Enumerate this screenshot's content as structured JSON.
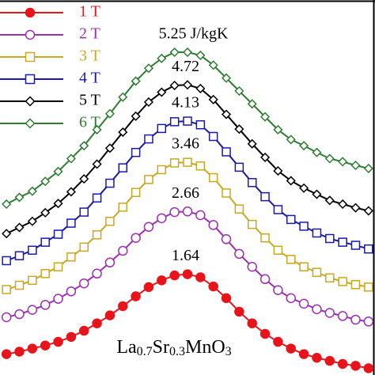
{
  "chart_data": {
    "type": "line",
    "categories": [
      null,
      null,
      null,
      null,
      null,
      null,
      null,
      null,
      null,
      null,
      null,
      null,
      null,
      null,
      null,
      null,
      null,
      null,
      null,
      null,
      null,
      null,
      null,
      null,
      null,
      null,
      null,
      null,
      null
    ],
    "ylim": [
      0,
      6.1
    ],
    "legend": "upper left",
    "series": [
      {
        "name": "1 T",
        "color": "#e8141b",
        "marker": "circle",
        "marker_fill": true,
        "values": [
          0.34,
          0.38,
          0.43,
          0.48,
          0.54,
          0.62,
          0.72,
          0.84,
          0.97,
          1.12,
          1.28,
          1.43,
          1.54,
          1.62,
          1.64,
          1.59,
          1.44,
          1.25,
          1.03,
          0.84,
          0.67,
          0.54,
          0.43,
          0.34,
          0.28,
          0.23,
          0.18,
          0.15,
          0.11
        ],
        "value_labels": [
          null,
          null,
          null,
          null,
          null,
          null,
          null,
          null,
          null,
          null,
          null,
          null,
          null,
          null,
          "1.64",
          null,
          null,
          null,
          null,
          null,
          null,
          null,
          null,
          null,
          null,
          null,
          null,
          null,
          null
        ]
      },
      {
        "name": "2 T",
        "color": "#9b30b0",
        "marker": "circle",
        "marker_fill": false,
        "values": [
          0.94,
          0.99,
          1.06,
          1.14,
          1.24,
          1.36,
          1.49,
          1.65,
          1.83,
          2.02,
          2.23,
          2.41,
          2.55,
          2.65,
          2.66,
          2.6,
          2.44,
          2.21,
          1.97,
          1.76,
          1.56,
          1.38,
          1.25,
          1.16,
          1.07,
          1.01,
          0.96,
          0.9,
          0.87
        ],
        "value_labels": [
          null,
          null,
          null,
          null,
          null,
          null,
          null,
          null,
          null,
          null,
          null,
          null,
          null,
          null,
          "2.66",
          null,
          null,
          null,
          null,
          null,
          null,
          null,
          null,
          null,
          null,
          null,
          null,
          null,
          null
        ]
      },
      {
        "name": "3 T",
        "color": "#c8a820",
        "marker": "square",
        "marker_fill": false,
        "values": [
          1.39,
          1.46,
          1.54,
          1.65,
          1.76,
          1.92,
          2.08,
          2.28,
          2.5,
          2.73,
          2.97,
          3.18,
          3.34,
          3.45,
          3.46,
          3.4,
          3.21,
          2.96,
          2.7,
          2.45,
          2.23,
          2.03,
          1.88,
          1.76,
          1.67,
          1.58,
          1.52,
          1.47,
          1.43
        ],
        "value_labels": [
          null,
          null,
          null,
          null,
          null,
          null,
          null,
          null,
          null,
          null,
          null,
          null,
          null,
          null,
          "3.46",
          null,
          null,
          null,
          null,
          null,
          null,
          null,
          null,
          null,
          null,
          null,
          null,
          null,
          null
        ]
      },
      {
        "name": "4 T",
        "color": "#1a1aa8",
        "marker": "square",
        "marker_fill": false,
        "values": [
          1.86,
          1.94,
          2.03,
          2.16,
          2.29,
          2.47,
          2.65,
          2.88,
          3.12,
          3.37,
          3.62,
          3.84,
          4.01,
          4.12,
          4.13,
          4.07,
          3.88,
          3.63,
          3.38,
          3.13,
          2.9,
          2.69,
          2.53,
          2.42,
          2.31,
          2.22,
          2.16,
          2.11,
          2.05
        ],
        "value_labels": [
          null,
          null,
          null,
          null,
          null,
          null,
          null,
          null,
          null,
          null,
          null,
          null,
          null,
          null,
          "4.13",
          null,
          null,
          null,
          null,
          null,
          null,
          null,
          null,
          null,
          null,
          null,
          null,
          null,
          null
        ]
      },
      {
        "name": "5 T",
        "color": "#000000",
        "marker": "diamond",
        "marker_fill": false,
        "values": [
          2.3,
          2.4,
          2.5,
          2.64,
          2.79,
          2.98,
          3.19,
          3.43,
          3.69,
          3.95,
          4.21,
          4.44,
          4.6,
          4.71,
          4.72,
          4.66,
          4.48,
          4.24,
          4.0,
          3.76,
          3.54,
          3.32,
          3.16,
          3.04,
          2.94,
          2.84,
          2.78,
          2.72,
          2.67
        ],
        "value_labels": [
          null,
          null,
          null,
          null,
          null,
          null,
          null,
          null,
          null,
          null,
          null,
          null,
          null,
          null,
          "4.72",
          null,
          null,
          null,
          null,
          null,
          null,
          null,
          null,
          null,
          null,
          null,
          null,
          null,
          null
        ]
      },
      {
        "name": "6 T",
        "color": "#2e7d32",
        "marker": "diamond",
        "marker_fill": false,
        "values": [
          2.78,
          2.89,
          2.99,
          3.15,
          3.31,
          3.52,
          3.73,
          3.99,
          4.25,
          4.52,
          4.78,
          4.99,
          5.15,
          5.25,
          5.25,
          5.2,
          5.04,
          4.83,
          4.62,
          4.41,
          4.2,
          3.99,
          3.83,
          3.73,
          3.62,
          3.52,
          3.47,
          3.41,
          3.36
        ],
        "value_labels": [
          null,
          null,
          null,
          null,
          null,
          null,
          null,
          null,
          null,
          null,
          null,
          null,
          null,
          "5.25 J/kgK",
          null,
          null,
          null,
          null,
          null,
          null,
          null,
          null,
          null,
          null,
          null,
          null,
          null,
          null,
          null
        ]
      }
    ],
    "annotation": [
      "La",
      "0.7",
      "Sr",
      "0.3",
      "MnO",
      "3"
    ]
  }
}
